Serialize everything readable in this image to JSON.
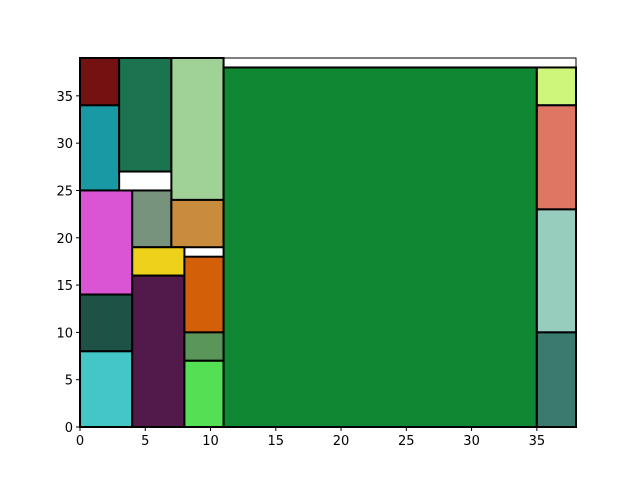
{
  "chart_data": {
    "type": "treemap",
    "title": "",
    "xlabel": "",
    "ylabel": "",
    "xlim": [
      0,
      38
    ],
    "ylim": [
      0,
      39
    ],
    "grid": false,
    "x_ticks": [
      {
        "value": 0,
        "label": "0"
      },
      {
        "value": 5,
        "label": "5"
      },
      {
        "value": 10,
        "label": "10"
      },
      {
        "value": 15,
        "label": "15"
      },
      {
        "value": 20,
        "label": "20"
      },
      {
        "value": 25,
        "label": "25"
      },
      {
        "value": 30,
        "label": "30"
      },
      {
        "value": 35,
        "label": "35"
      }
    ],
    "y_ticks": [
      {
        "value": 0,
        "label": "0"
      },
      {
        "value": 5,
        "label": "5"
      },
      {
        "value": 10,
        "label": "10"
      },
      {
        "value": 15,
        "label": "15"
      },
      {
        "value": 20,
        "label": "20"
      },
      {
        "value": 25,
        "label": "25"
      },
      {
        "value": 30,
        "label": "30"
      },
      {
        "value": 35,
        "label": "35"
      }
    ],
    "rects": [
      {
        "x0": 0,
        "y0": 34,
        "x1": 3,
        "y1": 39,
        "color": "#741212"
      },
      {
        "x0": 0,
        "y0": 25,
        "x1": 3,
        "y1": 34,
        "color": "#1899a4"
      },
      {
        "x0": 3,
        "y0": 27,
        "x1": 7,
        "y1": 39,
        "color": "#1b744f"
      },
      {
        "x0": 7,
        "y0": 24,
        "x1": 11,
        "y1": 39,
        "color": "#a0d196"
      },
      {
        "x0": 0,
        "y0": 14,
        "x1": 4,
        "y1": 25,
        "color": "#da55d4"
      },
      {
        "x0": 4,
        "y0": 19,
        "x1": 7,
        "y1": 25,
        "color": "#77927d"
      },
      {
        "x0": 7,
        "y0": 19,
        "x1": 11,
        "y1": 24,
        "color": "#c98b3c"
      },
      {
        "x0": 4,
        "y0": 16,
        "x1": 8,
        "y1": 19,
        "color": "#eed11b"
      },
      {
        "x0": 0,
        "y0": 8,
        "x1": 4,
        "y1": 14,
        "color": "#1f5246"
      },
      {
        "x0": 0,
        "y0": 0,
        "x1": 4,
        "y1": 8,
        "color": "#45c6c6"
      },
      {
        "x0": 4,
        "y0": 0,
        "x1": 8,
        "y1": 16,
        "color": "#521a4b"
      },
      {
        "x0": 8,
        "y0": 10,
        "x1": 11,
        "y1": 18,
        "color": "#d35f08"
      },
      {
        "x0": 8,
        "y0": 7,
        "x1": 11,
        "y1": 10,
        "color": "#5a955a"
      },
      {
        "x0": 8,
        "y0": 0,
        "x1": 11,
        "y1": 7,
        "color": "#53e055"
      },
      {
        "x0": 11,
        "y0": 0,
        "x1": 35,
        "y1": 38,
        "color": "#0f8733"
      },
      {
        "x0": 35,
        "y0": 34,
        "x1": 38,
        "y1": 38,
        "color": "#cdf67a"
      },
      {
        "x0": 35,
        "y0": 23,
        "x1": 38,
        "y1": 34,
        "color": "#df7563"
      },
      {
        "x0": 35,
        "y0": 10,
        "x1": 38,
        "y1": 23,
        "color": "#96cdbd"
      },
      {
        "x0": 35,
        "y0": 0,
        "x1": 38,
        "y1": 10,
        "color": "#3b7b6e"
      }
    ]
  }
}
